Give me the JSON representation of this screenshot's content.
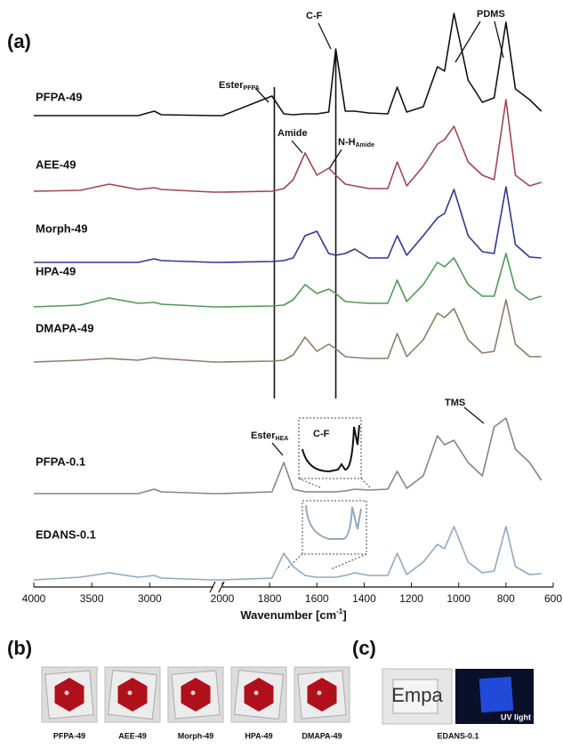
{
  "chart_data": {
    "type": "line",
    "panel_label": "(a)",
    "x_label": "Wavenumber [cm",
    "x_label_sup": "-1",
    "x_label_end": "]",
    "xlim": [
      4000,
      600
    ],
    "x_break": [
      2450,
      2000
    ],
    "xticks": [
      4000,
      3500,
      3000,
      2000,
      1800,
      1600,
      1400,
      1200,
      1000,
      800,
      600
    ],
    "x": [
      4000,
      3600,
      3350,
      3100,
      2960,
      2900,
      2450,
      2000,
      1790,
      1740,
      1700,
      1650,
      1600,
      1550,
      1520,
      1480,
      1440,
      1380,
      1300,
      1260,
      1220,
      1150,
      1090,
      1060,
      1020,
      960,
      900,
      850,
      800,
      760,
      700,
      650
    ],
    "series": [
      {
        "name": "PFPA-49",
        "color": "#111111",
        "values": [
          0,
          0,
          0,
          0,
          0.05,
          0.01,
          0,
          0,
          0.22,
          0.02,
          0.01,
          0.02,
          0.02,
          0.04,
          0.75,
          0.05,
          0.05,
          0.03,
          0.02,
          0.32,
          0.04,
          0.1,
          0.55,
          0.5,
          1.15,
          0.4,
          0.15,
          0.2,
          1.05,
          0.3,
          0.18,
          0.05
        ]
      },
      {
        "name": "AEE-49",
        "color": "#a3454b",
        "values": [
          0.02,
          0.03,
          0.1,
          0.04,
          0.06,
          0.04,
          0.01,
          0.01,
          0.02,
          0.05,
          0.15,
          0.45,
          0.2,
          0.28,
          0.2,
          0.1,
          0.08,
          0.05,
          0.05,
          0.35,
          0.08,
          0.3,
          0.55,
          0.6,
          0.75,
          0.35,
          0.2,
          0.15,
          1.05,
          0.2,
          0.08,
          0.12
        ]
      },
      {
        "name": "Morph-49",
        "color": "#2e3797",
        "values": [
          0,
          0,
          0,
          0,
          0.04,
          0.02,
          0,
          0,
          0.01,
          0.02,
          0.05,
          0.3,
          0.35,
          0.1,
          0.08,
          0.1,
          0.15,
          0.05,
          0.05,
          0.3,
          0.08,
          0.3,
          0.5,
          0.55,
          0.82,
          0.3,
          0.12,
          0.1,
          0.85,
          0.2,
          0.06,
          0.05
        ]
      },
      {
        "name": "HPA-49",
        "color": "#4f9a55",
        "values": [
          0,
          0.02,
          0.1,
          0.04,
          0.05,
          0.03,
          0,
          0,
          0.01,
          0.02,
          0.08,
          0.25,
          0.15,
          0.2,
          0.15,
          0.06,
          0.05,
          0.04,
          0.04,
          0.3,
          0.06,
          0.25,
          0.5,
          0.45,
          0.55,
          0.25,
          0.12,
          0.12,
          0.6,
          0.2,
          0.08,
          0.12
        ]
      },
      {
        "name": "DMAPA-49",
        "color": "#8c7d66",
        "values": [
          0,
          0.02,
          0.04,
          0.02,
          0.05,
          0.04,
          0,
          0,
          0.01,
          0.02,
          0.08,
          0.28,
          0.12,
          0.2,
          0.15,
          0.06,
          0.05,
          0.04,
          0.04,
          0.32,
          0.06,
          0.25,
          0.55,
          0.5,
          0.6,
          0.25,
          0.1,
          0.12,
          0.7,
          0.2,
          0.06,
          0.06
        ]
      },
      {
        "name": "PFPA-0.1",
        "color": "#858585",
        "values": [
          0,
          0,
          0,
          0,
          0.05,
          0.02,
          0,
          0,
          0.02,
          0.35,
          0.05,
          0.02,
          0.02,
          0.02,
          0.02,
          0.03,
          0.05,
          0.04,
          0.05,
          0.25,
          0.06,
          0.2,
          0.65,
          0.55,
          0.6,
          0.35,
          0.2,
          0.75,
          0.85,
          0.5,
          0.35,
          0.15
        ]
      },
      {
        "name": "EDANS-0.1",
        "color": "#8ea9c1",
        "values": [
          0,
          0.03,
          0.08,
          0.03,
          0.05,
          0.02,
          0,
          0,
          0.02,
          0.3,
          0.15,
          0.05,
          0.03,
          0.03,
          0.03,
          0.05,
          0.08,
          0.05,
          0.05,
          0.3,
          0.06,
          0.2,
          0.4,
          0.35,
          0.6,
          0.2,
          0.08,
          0.1,
          0.6,
          0.15,
          0.06,
          0.07
        ]
      }
    ],
    "marker_lines": [
      1780,
      1520
    ],
    "annotations": {
      "ester_pfpa": "Ester",
      "ester_pfpa_sub": "PFPA",
      "cf": "C-F",
      "pdms": "PDMS",
      "amide": "Amide",
      "nh": "N-H",
      "nh_sub": "Amide",
      "ester_hea": "Ester",
      "ester_hea_sub": "HEA",
      "tms": "TMS",
      "inset_cf": "C-F"
    }
  },
  "panels": {
    "b": {
      "label": "(b)",
      "captions": [
        "PFPA-49",
        "AEE-49",
        "Morph-49",
        "HPA-49",
        "DMAPA-49"
      ]
    },
    "c": {
      "label": "(c)",
      "sample_text": "Empa",
      "uv_text": "UV light",
      "caption": "EDANS-0.1"
    }
  }
}
